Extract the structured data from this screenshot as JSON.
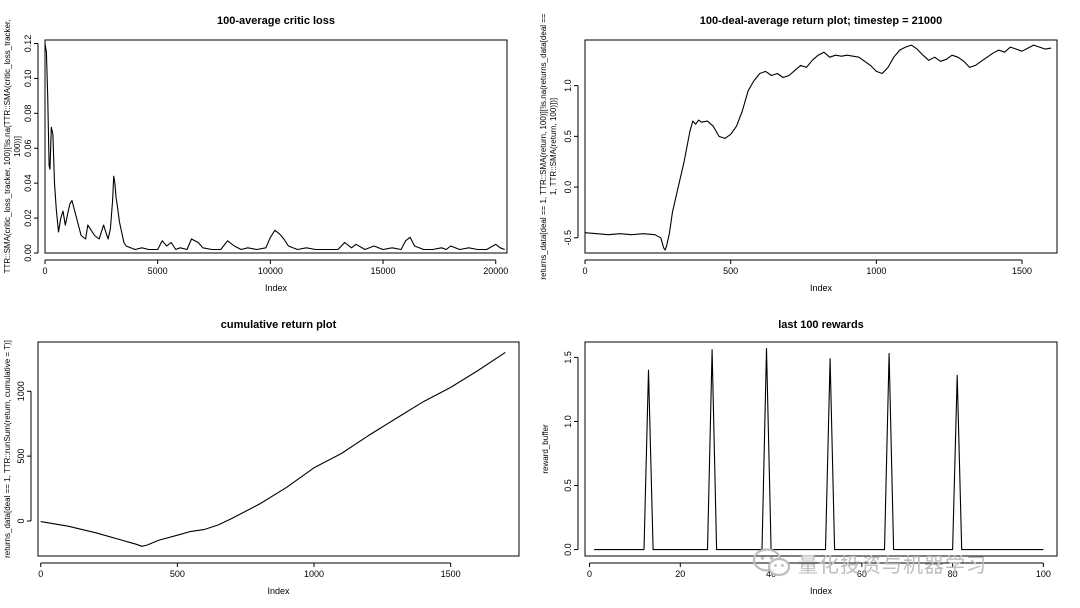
{
  "chart_data": [
    {
      "type": "line",
      "title": "100-average critic loss",
      "xlabel": "Index",
      "ylabel": [
        "TTR::SMA(critic_loss_tracker, 100)[!is.na(TTR::SMA(critic_loss_tracker,",
        "100))]"
      ],
      "xlim": [
        0,
        20500
      ],
      "ylim": [
        0,
        0.122
      ],
      "xticks": [
        0,
        5000,
        10000,
        15000,
        20000
      ],
      "xtick_labels": [
        "0",
        "5000",
        "10000",
        "15000",
        "20000"
      ],
      "yticks": [
        0,
        0.02,
        0.04,
        0.06,
        0.08,
        0.1,
        0.12
      ],
      "ytick_labels": [
        "0.00",
        "0.02",
        "0.04",
        "0.06",
        "0.08",
        "0.10",
        "0.12"
      ],
      "series": [
        {
          "name": "critic loss",
          "x": [
            0,
            60,
            120,
            180,
            220,
            280,
            350,
            420,
            500,
            600,
            700,
            800,
            900,
            1000,
            1100,
            1200,
            1400,
            1600,
            1800,
            1900,
            2000,
            2200,
            2400,
            2600,
            2700,
            2800,
            2900,
            3000,
            3050,
            3100,
            3150,
            3200,
            3300,
            3400,
            3500,
            3600,
            3800,
            4000,
            4300,
            4600,
            5000,
            5200,
            5400,
            5600,
            5800,
            6000,
            6300,
            6500,
            6800,
            7000,
            7400,
            7800,
            8100,
            8400,
            8700,
            9000,
            9400,
            9800,
            10000,
            10200,
            10400,
            10600,
            10800,
            11200,
            11600,
            12000,
            12500,
            13000,
            13300,
            13600,
            13800,
            14200,
            14600,
            15000,
            15400,
            15800,
            16000,
            16200,
            16400,
            16800,
            17200,
            17600,
            17800,
            18000,
            18400,
            18800,
            19200,
            19600,
            20000,
            20200,
            20400
          ],
          "y": [
            0.12,
            0.115,
            0.09,
            0.05,
            0.048,
            0.072,
            0.068,
            0.04,
            0.025,
            0.012,
            0.02,
            0.024,
            0.016,
            0.022,
            0.028,
            0.03,
            0.02,
            0.01,
            0.008,
            0.016,
            0.014,
            0.01,
            0.008,
            0.016,
            0.012,
            0.008,
            0.014,
            0.03,
            0.044,
            0.04,
            0.032,
            0.028,
            0.018,
            0.012,
            0.006,
            0.004,
            0.003,
            0.002,
            0.003,
            0.002,
            0.002,
            0.007,
            0.004,
            0.006,
            0.002,
            0.003,
            0.002,
            0.008,
            0.006,
            0.003,
            0.002,
            0.002,
            0.007,
            0.004,
            0.002,
            0.003,
            0.002,
            0.003,
            0.009,
            0.013,
            0.011,
            0.008,
            0.004,
            0.002,
            0.003,
            0.002,
            0.002,
            0.002,
            0.006,
            0.003,
            0.005,
            0.002,
            0.004,
            0.002,
            0.003,
            0.002,
            0.007,
            0.009,
            0.004,
            0.002,
            0.002,
            0.003,
            0.002,
            0.004,
            0.002,
            0.003,
            0.002,
            0.002,
            0.005,
            0.003,
            0.002
          ]
        }
      ]
    },
    {
      "type": "line",
      "title": "100-deal-average return plot; timestep = 21000",
      "xlabel": "Index",
      "ylabel": [
        "returns_data[deal == 1, TTR::SMA(return, 100)][!is.na(returns_data[deal ==",
        "1, TTR::SMA(return, 100)])]"
      ],
      "xlim": [
        0,
        1620
      ],
      "ylim": [
        -0.65,
        1.45
      ],
      "xticks": [
        0,
        500,
        1000,
        1500
      ],
      "xtick_labels": [
        "0",
        "500",
        "1000",
        "1500"
      ],
      "yticks": [
        -0.5,
        0,
        0.5,
        1
      ],
      "ytick_labels": [
        "-0.5",
        "0.0",
        "0.5",
        "1.0"
      ],
      "series": [
        {
          "name": "return",
          "x": [
            0,
            40,
            80,
            120,
            160,
            200,
            240,
            260,
            270,
            275,
            280,
            290,
            300,
            320,
            340,
            360,
            370,
            380,
            390,
            400,
            420,
            440,
            460,
            480,
            500,
            520,
            540,
            560,
            580,
            600,
            620,
            640,
            660,
            680,
            700,
            720,
            740,
            760,
            780,
            800,
            820,
            840,
            860,
            880,
            900,
            940,
            980,
            1000,
            1020,
            1040,
            1060,
            1080,
            1100,
            1120,
            1140,
            1160,
            1180,
            1200,
            1220,
            1240,
            1260,
            1280,
            1300,
            1320,
            1340,
            1360,
            1380,
            1400,
            1420,
            1440,
            1460,
            1480,
            1500,
            1520,
            1540,
            1560,
            1580,
            1600
          ],
          "y": [
            -0.45,
            -0.46,
            -0.47,
            -0.46,
            -0.47,
            -0.46,
            -0.47,
            -0.5,
            -0.6,
            -0.62,
            -0.58,
            -0.45,
            -0.25,
            0.0,
            0.25,
            0.55,
            0.65,
            0.62,
            0.66,
            0.64,
            0.65,
            0.6,
            0.5,
            0.48,
            0.52,
            0.6,
            0.75,
            0.95,
            1.05,
            1.12,
            1.14,
            1.1,
            1.12,
            1.08,
            1.1,
            1.15,
            1.2,
            1.18,
            1.25,
            1.3,
            1.33,
            1.28,
            1.3,
            1.29,
            1.3,
            1.28,
            1.2,
            1.14,
            1.12,
            1.18,
            1.28,
            1.35,
            1.38,
            1.4,
            1.36,
            1.3,
            1.25,
            1.28,
            1.24,
            1.26,
            1.3,
            1.28,
            1.24,
            1.18,
            1.2,
            1.24,
            1.28,
            1.32,
            1.35,
            1.33,
            1.38,
            1.36,
            1.34,
            1.37,
            1.4,
            1.38,
            1.36,
            1.37
          ]
        }
      ]
    },
    {
      "type": "line",
      "title": "cumulative return plot",
      "xlabel": "Index",
      "ylabel": [
        "returns_data[deal == 1, TTR::runSum(return, cumulative = T)]"
      ],
      "xlim": [
        -10,
        1750
      ],
      "ylim": [
        -270,
        1380
      ],
      "xticks": [
        0,
        500,
        1000,
        1500
      ],
      "xtick_labels": [
        "0",
        "500",
        "1000",
        "1500"
      ],
      "yticks": [
        0,
        500,
        1000
      ],
      "ytick_labels": [
        "0",
        "500",
        "1000"
      ],
      "series": [
        {
          "name": "cumulative return",
          "x": [
            0,
            100,
            200,
            300,
            350,
            370,
            390,
            430,
            500,
            550,
            600,
            650,
            700,
            800,
            900,
            1000,
            1100,
            1200,
            1300,
            1400,
            1500,
            1600,
            1700
          ],
          "y": [
            -5,
            -40,
            -90,
            -150,
            -180,
            -195,
            -185,
            -150,
            -110,
            -80,
            -65,
            -30,
            20,
            130,
            260,
            410,
            520,
            660,
            790,
            920,
            1030,
            1160,
            1300
          ]
        }
      ]
    },
    {
      "type": "line",
      "title": "last 100 rewards",
      "xlabel": "Index",
      "ylabel": [
        "reward_buffer"
      ],
      "xlim": [
        -1,
        103
      ],
      "ylim": [
        -0.05,
        1.62
      ],
      "xticks": [
        0,
        20,
        40,
        60,
        80,
        100
      ],
      "xtick_labels": [
        "0",
        "20",
        "40",
        "60",
        "80",
        "100"
      ],
      "yticks": [
        0,
        0.5,
        1,
        1.5
      ],
      "ytick_labels": [
        "0.0",
        "0.5",
        "1.0",
        "1.5"
      ],
      "series": [
        {
          "name": "reward",
          "x": [
            1,
            12,
            13,
            14,
            26,
            27,
            28,
            38,
            39,
            40,
            52,
            53,
            54,
            65,
            66,
            67,
            80,
            81,
            82,
            100
          ],
          "y": [
            0,
            0,
            1.4,
            0,
            0,
            1.56,
            0,
            0,
            1.57,
            0,
            0,
            1.49,
            0,
            0,
            1.53,
            0,
            0,
            1.36,
            0,
            0
          ]
        }
      ]
    }
  ],
  "watermark": {
    "text": "量化投资与机器学习",
    "icon": "wechat-icon"
  },
  "colors": {
    "line": "#000000",
    "frame": "#000000",
    "watermark": "#bdbdbd"
  }
}
